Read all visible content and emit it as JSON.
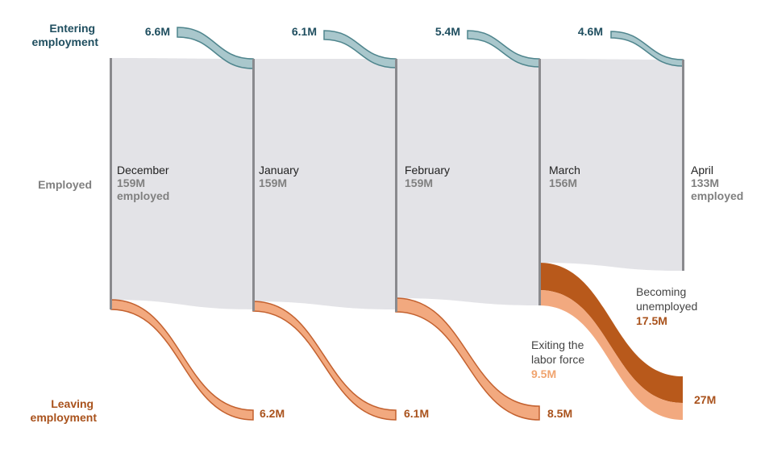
{
  "colors": {
    "employed": "#e3e3e7",
    "employed_bar": "#8a8a8e",
    "entering_fill": "#a9c7cc",
    "entering_stroke": "#4f858d",
    "entering_label": "#1f4e5f",
    "leaving_fill": "#f2a97f",
    "leaving_stroke": "#c3612f",
    "leaving_label": "#a9521c",
    "unemployed_fill": "#b8591b",
    "exit_label": "#f0a46f",
    "gray_text": "#808080",
    "dark_text": "#222222"
  },
  "row_labels": {
    "entering": [
      "Entering",
      "employment"
    ],
    "employed": "Employed",
    "leaving": [
      "Leaving",
      "employment"
    ]
  },
  "months": [
    {
      "name": "December",
      "value": "159M",
      "unit": "employed"
    },
    {
      "name": "January",
      "value": "159M",
      "unit": ""
    },
    {
      "name": "February",
      "value": "159M",
      "unit": ""
    },
    {
      "name": "March",
      "value": "156M",
      "unit": ""
    },
    {
      "name": "April",
      "value": "133M",
      "unit": "employed"
    }
  ],
  "entering_values": [
    "6.6M",
    "6.1M",
    "5.4M",
    "4.6M"
  ],
  "leaving_values": [
    "6.2M",
    "6.1M",
    "8.5M",
    "27M"
  ],
  "annotations": {
    "unemployed": {
      "lines": [
        "Becoming",
        "unemployed"
      ],
      "value": "17.5M"
    },
    "exiting": {
      "lines": [
        "Exiting the",
        "labor force"
      ],
      "value": "9.5M"
    }
  }
}
